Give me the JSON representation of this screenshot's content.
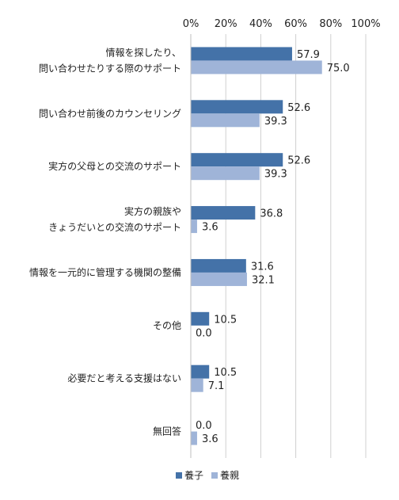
{
  "chart_data": {
    "type": "bar",
    "orientation": "horizontal",
    "xlim": [
      0,
      100
    ],
    "x_ticks": [
      "0%",
      "20%",
      "40%",
      "60%",
      "80%",
      "100%"
    ],
    "x_tick_values": [
      0,
      20,
      40,
      60,
      80,
      100
    ],
    "grid": true,
    "legend_position": "bottom",
    "categories": [
      [
        "情報を探したり、",
        "問い合わせたりする際のサポート"
      ],
      [
        "問い合わせ前後のカウンセリング"
      ],
      [
        "実方の父母との交流のサポート"
      ],
      [
        "実方の親族や",
        "きょうだいとの交流のサポート"
      ],
      [
        "情報を一元的に管理する機関の整備"
      ],
      [
        "その他"
      ],
      [
        "必要だと考える支援はない"
      ],
      [
        "無回答"
      ]
    ],
    "series": [
      {
        "name": "養子",
        "color": "#4472a8",
        "values": [
          57.9,
          52.6,
          52.6,
          36.8,
          31.6,
          10.5,
          10.5,
          0.0
        ],
        "labels": [
          "57.9",
          "52.6",
          "52.6",
          "36.8",
          "31.6",
          "10.5",
          "10.5",
          "0.0"
        ]
      },
      {
        "name": "養親",
        "color": "#9fb4d8",
        "values": [
          75.0,
          39.3,
          39.3,
          3.6,
          32.1,
          0.0,
          7.1,
          3.6
        ],
        "labels": [
          "75.0",
          "39.3",
          "39.3",
          "3.6",
          "32.1",
          "0.0",
          "7.1",
          "3.6"
        ]
      }
    ]
  }
}
